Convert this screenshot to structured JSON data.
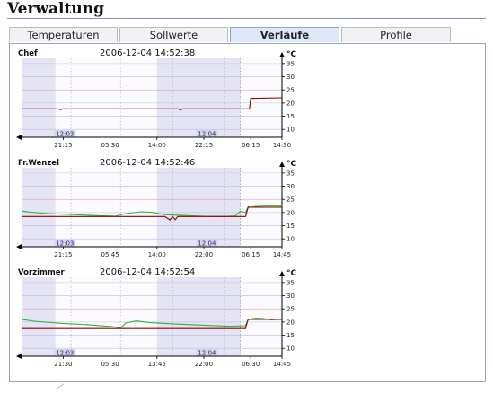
{
  "page": {
    "title": "Verwaltung"
  },
  "tabs": [
    {
      "label": "Temperaturen",
      "active": false
    },
    {
      "label": "Sollwerte",
      "active": false
    },
    {
      "label": "Verläufe",
      "active": true
    },
    {
      "label": "Profile",
      "active": false
    }
  ],
  "colors": {
    "actual": "#2fb52f",
    "setpoint": "#8b0000",
    "band": "#dcdcf2",
    "axis": "#000000"
  },
  "chart_data": [
    {
      "type": "line",
      "name": "Chef",
      "timestamp": "2006-12-04 14:52:38",
      "unit": "°C",
      "ylim": [
        7,
        37
      ],
      "yticks": [
        10,
        15,
        20,
        25,
        30,
        35
      ],
      "xticks": [
        "21:15",
        "05:30",
        "14:00",
        "22:15",
        "06:15",
        "14:30"
      ],
      "band_labels": [
        "12:03",
        "12:04"
      ],
      "series": [
        {
          "role": "setpoint",
          "x": [
            0,
            0.14,
            0.15,
            0.16,
            0.6,
            0.61,
            0.62,
            0.875,
            0.88,
            0.9,
            1.0
          ],
          "values": [
            17.8,
            17.8,
            17.5,
            17.8,
            17.8,
            17.4,
            17.8,
            17.8,
            21.8,
            21.8,
            22.0
          ]
        }
      ]
    },
    {
      "type": "line",
      "name": "Fr.Wenzel",
      "timestamp": "2006-12-04 14:52:46",
      "unit": "°C",
      "ylim": [
        7,
        37
      ],
      "yticks": [
        10,
        15,
        20,
        25,
        30,
        35
      ],
      "xticks": [
        "21:15",
        "05:45",
        "14:00",
        "22:00",
        "06:15",
        "14:45"
      ],
      "band_labels": [
        "12:03",
        "12:04"
      ],
      "series": [
        {
          "role": "actual",
          "x": [
            0,
            0.03,
            0.1,
            0.2,
            0.3,
            0.36,
            0.4,
            0.46,
            0.5,
            0.55,
            0.62,
            0.7,
            0.78,
            0.82,
            0.84,
            0.86,
            0.87,
            0.88,
            0.9,
            0.95,
            1.0
          ],
          "values": [
            20.6,
            20.2,
            19.6,
            19.2,
            18.8,
            18.6,
            19.6,
            20.3,
            20.1,
            19.2,
            18.9,
            18.6,
            18.5,
            18.7,
            20.5,
            20.0,
            22.2,
            22.0,
            22.3,
            22.5,
            22.4
          ]
        },
        {
          "role": "setpoint",
          "x": [
            0,
            0.55,
            0.57,
            0.58,
            0.59,
            0.6,
            0.84,
            0.86,
            0.87,
            1.0
          ],
          "values": [
            18.5,
            18.5,
            17.2,
            18.5,
            17.3,
            18.5,
            18.5,
            18.5,
            22.0,
            22.0
          ]
        }
      ]
    },
    {
      "type": "line",
      "name": "Vorzimmer",
      "timestamp": "2006-12-04 14:52:54",
      "unit": "°C",
      "ylim": [
        7,
        37
      ],
      "yticks": [
        10,
        15,
        20,
        25,
        30,
        35
      ],
      "xticks": [
        "21:30",
        "05:30",
        "13:45",
        "22:00",
        "06:30",
        "14:45"
      ],
      "band_labels": [
        "12:03",
        "12:04"
      ],
      "series": [
        {
          "role": "actual",
          "x": [
            0,
            0.05,
            0.15,
            0.25,
            0.35,
            0.38,
            0.4,
            0.44,
            0.5,
            0.6,
            0.7,
            0.8,
            0.86,
            0.87,
            0.9,
            0.93,
            0.96,
            1.0
          ],
          "values": [
            21.0,
            20.3,
            19.5,
            19.0,
            18.2,
            17.7,
            19.6,
            20.4,
            19.7,
            19.2,
            18.8,
            18.4,
            18.6,
            21.0,
            21.5,
            21.3,
            20.8,
            21.2
          ]
        },
        {
          "role": "setpoint",
          "x": [
            0,
            0.86,
            0.87,
            1.0
          ],
          "values": [
            17.5,
            17.5,
            21.0,
            21.0
          ]
        }
      ]
    }
  ]
}
